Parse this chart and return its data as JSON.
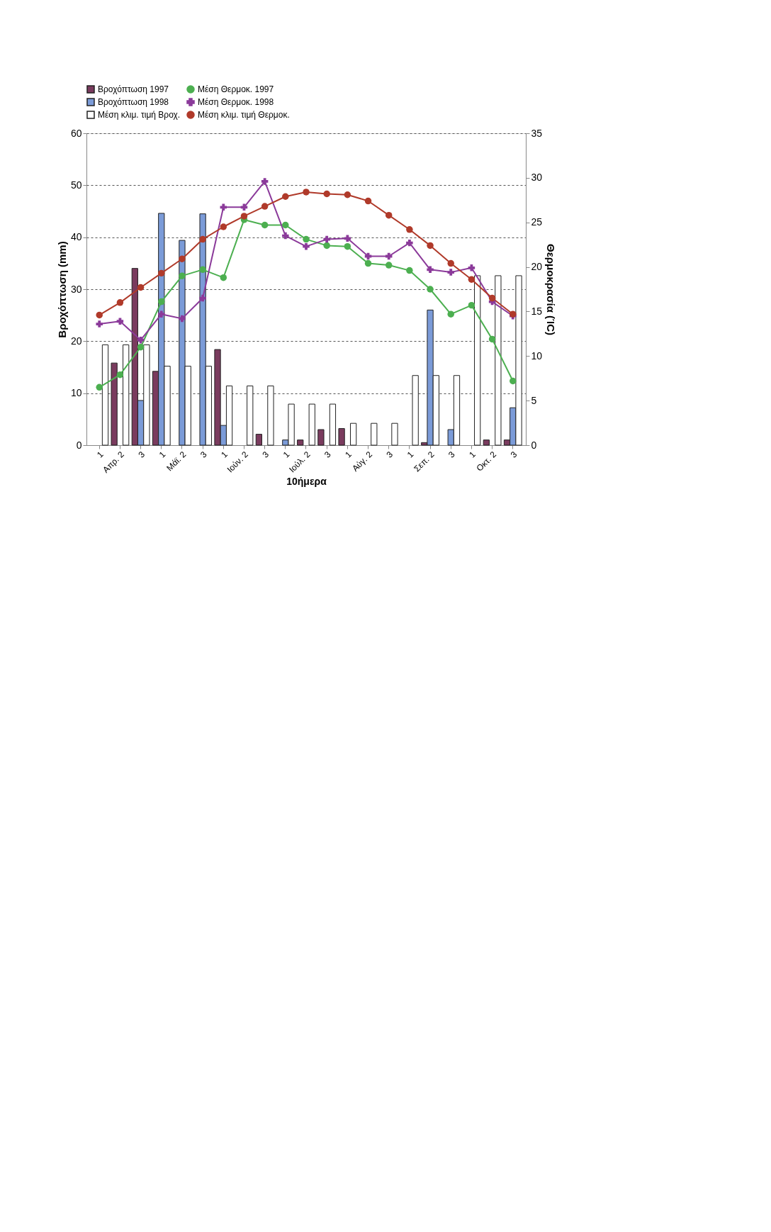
{
  "chart_data": {
    "type": "bar",
    "xlabel": "10ήμερα",
    "ylabel": "Βροχόπτωση (mm)",
    "y2label": "Θερμοκρασία (ΊC)",
    "categories": [
      "1",
      "Απρ. 2",
      "3",
      "1",
      "Μάϊ. 2",
      "3",
      "1",
      "Ιούν. 2",
      "3",
      "1",
      "Ιούλ. 2",
      "3",
      "1",
      "Αύγ. 2",
      "3",
      "1",
      "Σεπ. 2",
      "3",
      "1",
      "Οκτ. 2",
      "3"
    ],
    "series": [
      {
        "name": "Βροχόπτωση 1997",
        "color": "#7a3b5e",
        "values": [
          null,
          15.8,
          34,
          14.2,
          null,
          null,
          18.4,
          null,
          2.1,
          null,
          1,
          3,
          3.2,
          null,
          null,
          null,
          0.5,
          null,
          null,
          1,
          1
        ]
      },
      {
        "name": "Βροχόπτωση 1998",
        "color": "#7b9bd8",
        "values": [
          null,
          null,
          8.6,
          44.6,
          39.4,
          44.5,
          3.8,
          null,
          null,
          1,
          null,
          null,
          null,
          null,
          null,
          null,
          26,
          3,
          null,
          null,
          7.2
        ]
      },
      {
        "name": "Μέση κλιμ. τιμή Βροχ.",
        "color": "#ffffff",
        "values": [
          19.3,
          19.3,
          19.3,
          15.2,
          15.2,
          15.2,
          11.4,
          11.4,
          11.4,
          7.9,
          7.9,
          7.9,
          4.2,
          4.2,
          4.2,
          13.4,
          13.4,
          13.4,
          32.6,
          32.6,
          32.6
        ]
      },
      {
        "name": "Μέση Θερμοκ. 1997",
        "type": "line",
        "axis": "y2",
        "marker": "circle",
        "color": "#4caf50",
        "values": [
          6.5,
          7.9,
          11,
          16.1,
          19,
          19.7,
          18.8,
          25.3,
          24.7,
          24.7,
          23.1,
          22.4,
          22.3,
          20.4,
          20.2,
          19.6,
          17.5,
          14.7,
          15.7,
          11.9,
          7.2
        ]
      },
      {
        "name": "Μέση Θερμοκ. 1998",
        "type": "line",
        "axis": "y2",
        "marker": "cross",
        "color": "#8b3a9a",
        "values": [
          13.6,
          13.9,
          11.8,
          14.7,
          14.2,
          16.5,
          26.7,
          26.7,
          29.6,
          23.5,
          22.3,
          23.1,
          23.2,
          21.2,
          21.2,
          22.7,
          19.7,
          19.4,
          19.9,
          16.1,
          14.5
        ]
      },
      {
        "name": "Μέση κλιμ. τιμή Θερμοκ.",
        "type": "line",
        "axis": "y2",
        "marker": "circle",
        "color": "#b03a2a",
        "values": [
          14.6,
          16,
          17.7,
          19.3,
          20.9,
          23.1,
          24.5,
          25.7,
          26.8,
          27.9,
          28.4,
          28.2,
          28.1,
          27.4,
          25.8,
          24.2,
          22.4,
          20.4,
          18.6,
          16.5,
          14.7
        ]
      }
    ],
    "ylim": [
      0,
      60
    ],
    "yticks": [
      0,
      10,
      20,
      30,
      40,
      50,
      60
    ],
    "y2lim": [
      0,
      35
    ],
    "y2ticks": [
      0,
      5,
      10,
      15,
      20,
      25,
      30,
      35
    ],
    "grid": "y",
    "legend": "top"
  }
}
